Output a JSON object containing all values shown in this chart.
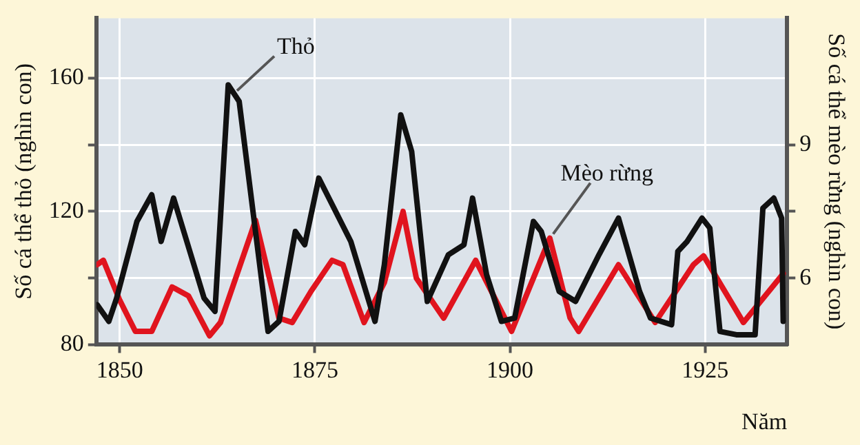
{
  "chart_data": {
    "type": "line",
    "xlabel": "Năm",
    "ylabel": "Số cá thể thỏ (nghìn con)",
    "y2label": "Số cá thể mèo rừng (nghìn con)",
    "xlim": [
      1847,
      1935.5
    ],
    "xticks": [
      1850,
      1875,
      1900,
      1925
    ],
    "ylim": [
      80,
      178
    ],
    "yticks": [
      80,
      {
        "value": 100,
        "label": null
      },
      120,
      {
        "value": 140,
        "label": null
      },
      160
    ],
    "y2lim": [
      4.5,
      11.85
    ],
    "y2ticks": [
      {
        "value": 7.5,
        "label": null
      },
      6,
      9
    ],
    "grid": true,
    "legend": false,
    "marker": "none",
    "line_style": "solid",
    "series": [
      {
        "color": "#111111",
        "x": [
          1847.1,
          1848.6,
          1849.6,
          1852.2,
          1854.1,
          1855.3,
          1856.9,
          1860.8,
          1862.2,
          1863.9,
          1865.3,
          1869,
          1870.4,
          1872.5,
          1873.7,
          1875.5,
          1879.6,
          1882.7,
          1883.9,
          1886,
          1887.4,
          1889.4,
          1892.1,
          1894.1,
          1895.2,
          1897,
          1898.9,
          1900.6,
          1903,
          1904,
          1906.3,
          1908.4,
          1911.4,
          1913.9,
          1916.6,
          1918,
          1920.7,
          1921.5,
          1922.7,
          1924.6,
          1925.6,
          1926.9,
          1929,
          1931.4,
          1932.4,
          1933.8,
          1934.8,
          1935
        ],
        "values": [
          92,
          87,
          94,
          117,
          125,
          111,
          124,
          94,
          90,
          158,
          153,
          84,
          87,
          114,
          110,
          130,
          111,
          87,
          104,
          149,
          138,
          93,
          107,
          110,
          124,
          101,
          87,
          88,
          117,
          114,
          96,
          93,
          107,
          118,
          96,
          88,
          86,
          108,
          111,
          118,
          115,
          84,
          83,
          83,
          121,
          124,
          118,
          87
        ]
      },
      {
        "color": "#e0141e",
        "axis": "y2",
        "x": [
          1847.1,
          1847.9,
          1850,
          1852,
          1854.1,
          1856.7,
          1858.8,
          1861.5,
          1862.9,
          1867.4,
          1870.4,
          1872.1,
          1874.5,
          1877.2,
          1878.6,
          1881.3,
          1883.9,
          1886.3,
          1888,
          1891.5,
          1895.6,
          1900.2,
          1905.1,
          1907.7,
          1908.8,
          1913.9,
          1918.6,
          1923.5,
          1924.8,
          1929.9,
          1935
        ],
        "values": [
          6.3,
          6.4,
          5.5,
          4.8,
          4.8,
          5.8,
          5.6,
          4.7,
          5.0,
          7.3,
          5.1,
          5.0,
          5.7,
          6.4,
          6.3,
          5.0,
          5.9,
          7.5,
          6.0,
          5.1,
          6.4,
          4.8,
          6.9,
          5.1,
          4.8,
          6.3,
          5.0,
          6.3,
          6.5,
          5.0,
          6.1
        ]
      }
    ],
    "annotations": [
      {
        "text": "Thỏ",
        "x": 1864.5,
        "y": 155
      },
      {
        "text": "Mèo rừng",
        "x": 1905,
        "y": 112
      }
    ]
  }
}
